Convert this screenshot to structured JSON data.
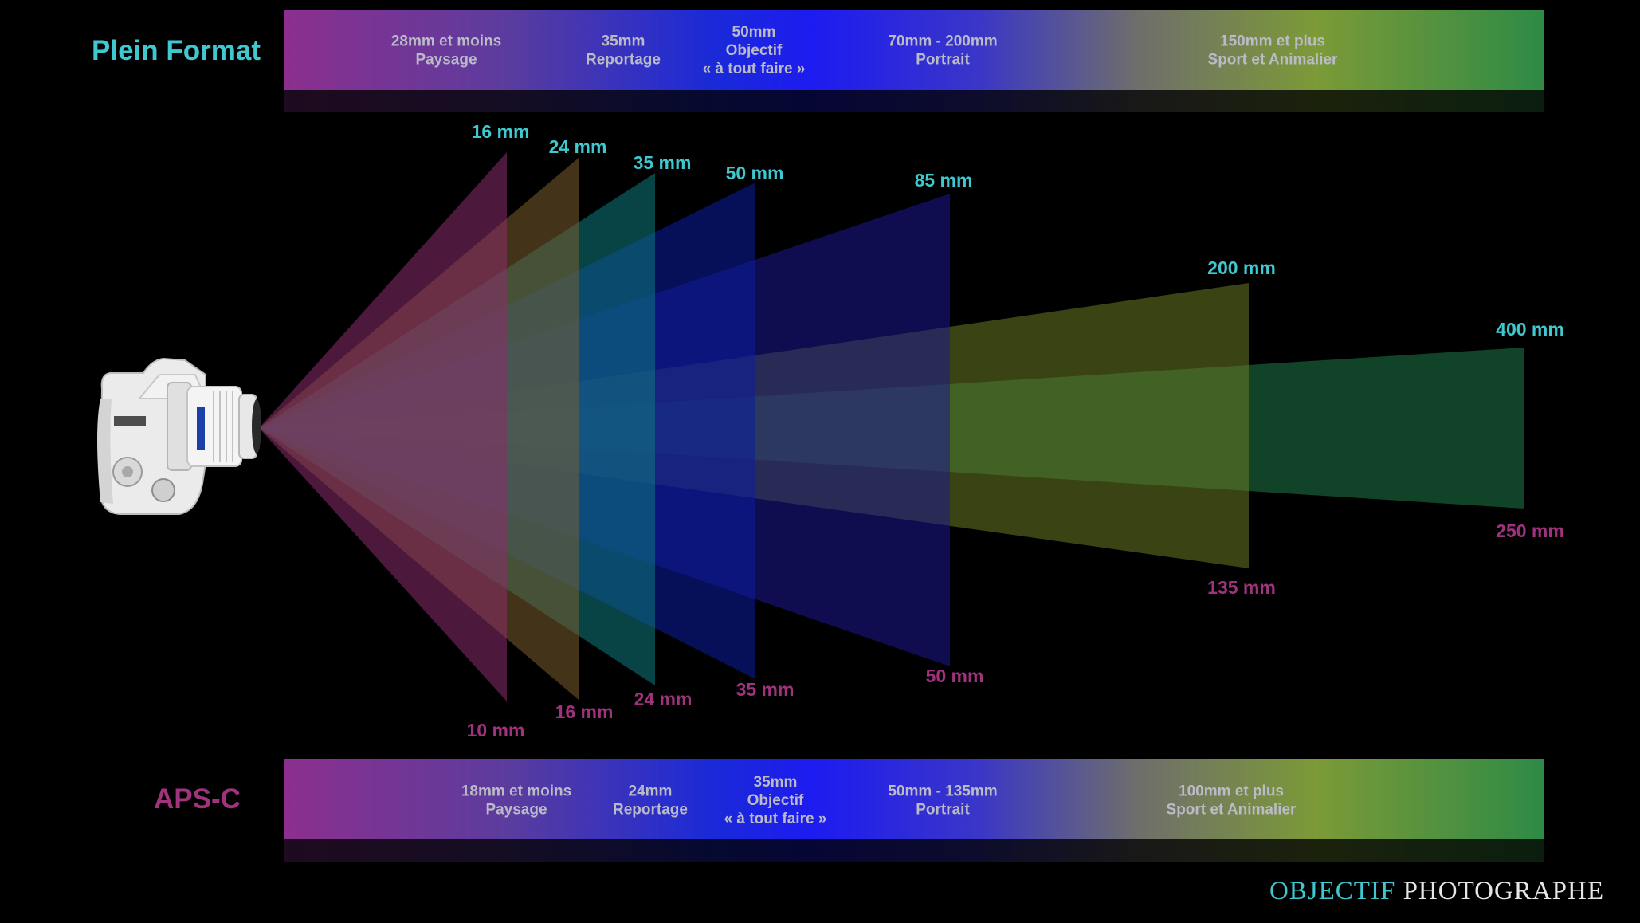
{
  "colors": {
    "title_full": "#3fc8d0",
    "title_apsc": "#a0327e",
    "label_top": "#3fc8d0",
    "label_bottom": "#a0327e",
    "band_text": "#bbbbc8",
    "band_gradient": [
      "#8c2f8e",
      "#5a3c9e",
      "#1a2ad8",
      "#1d1bf0",
      "#3a36c8",
      "#6f6f6a",
      "#7c9a37",
      "#2e8a45"
    ]
  },
  "full_frame": {
    "title": "Plein Format",
    "segments": [
      {
        "lines": [
          "28mm et moins",
          "Paysage"
        ]
      },
      {
        "lines": [
          "35mm",
          "Reportage"
        ]
      },
      {
        "lines": [
          "50mm",
          "Objectif",
          "« à tout faire »"
        ]
      },
      {
        "lines": [
          "70mm - 200mm",
          "Portrait"
        ]
      },
      {
        "lines": [
          "150mm et plus",
          "Sport et Animalier"
        ]
      }
    ]
  },
  "apsc": {
    "title": "APS-C",
    "segments": [
      {
        "lines": [
          "18mm et moins",
          "Paysage"
        ]
      },
      {
        "lines": [
          "24mm",
          "Reportage"
        ]
      },
      {
        "lines": [
          "35mm",
          "Objectif",
          "« à tout faire »"
        ]
      },
      {
        "lines": [
          "50mm - 135mm",
          "Portrait"
        ]
      },
      {
        "lines": [
          "100mm et plus",
          "Sport et Animalier"
        ]
      }
    ]
  },
  "cones": [
    {
      "full_frame_label": "16 mm",
      "apsc_label": "10 mm",
      "color": "#8a2c6c"
    },
    {
      "full_frame_label": "24 mm",
      "apsc_label": "16 mm",
      "color": "#7a5c2c"
    },
    {
      "full_frame_label": "35 mm",
      "apsc_label": "24 mm",
      "color": "#0e7a80"
    },
    {
      "full_frame_label": "50 mm",
      "apsc_label": "35 mm",
      "color": "#0a1ea0"
    },
    {
      "full_frame_label": "85 mm",
      "apsc_label": "50 mm",
      "color": "#1c1790"
    },
    {
      "full_frame_label": "200 mm",
      "apsc_label": "135 mm",
      "color": "#6a7a22"
    },
    {
      "full_frame_label": "400 mm",
      "apsc_label": "250 mm",
      "color": "#1f7a48"
    }
  ],
  "brand": {
    "word1": "OBJECTIF",
    "word2": "PHOTOGRAPHE",
    "color1": "#3fc8d0",
    "color2": "#e6e6e6"
  },
  "camera_icon": "dslr-camera-icon"
}
